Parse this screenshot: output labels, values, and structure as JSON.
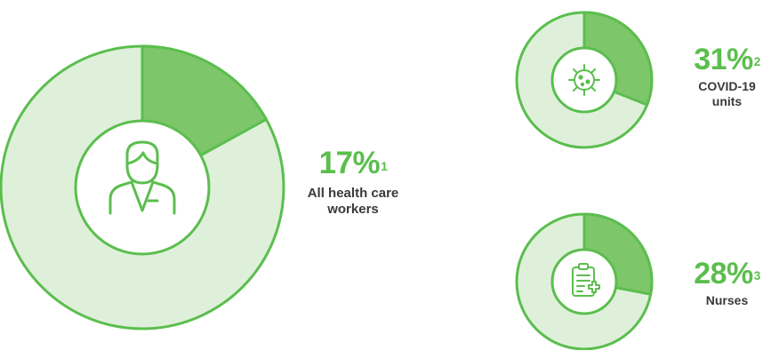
{
  "colors": {
    "accent": "#5BBE4E",
    "fill": "#7DC66A",
    "remainder": "#DFF0DA",
    "ring_stroke": "#5BBE4E",
    "text": "#3a3a3a"
  },
  "chart_data": [
    {
      "type": "pie",
      "variant": "donut",
      "value_label": "17%",
      "footnote": "1",
      "caption": "All health care workers",
      "values": [
        17,
        83
      ],
      "icon": "health-care-worker-icon"
    },
    {
      "type": "pie",
      "variant": "donut",
      "value_label": "31%",
      "footnote": "2",
      "caption": "COVID-19 units",
      "values": [
        31,
        69
      ],
      "icon": "virus-icon"
    },
    {
      "type": "pie",
      "variant": "donut",
      "value_label": "28%",
      "footnote": "3",
      "caption": "Nurses",
      "values": [
        28,
        72
      ],
      "icon": "clipboard-medical-icon"
    }
  ]
}
